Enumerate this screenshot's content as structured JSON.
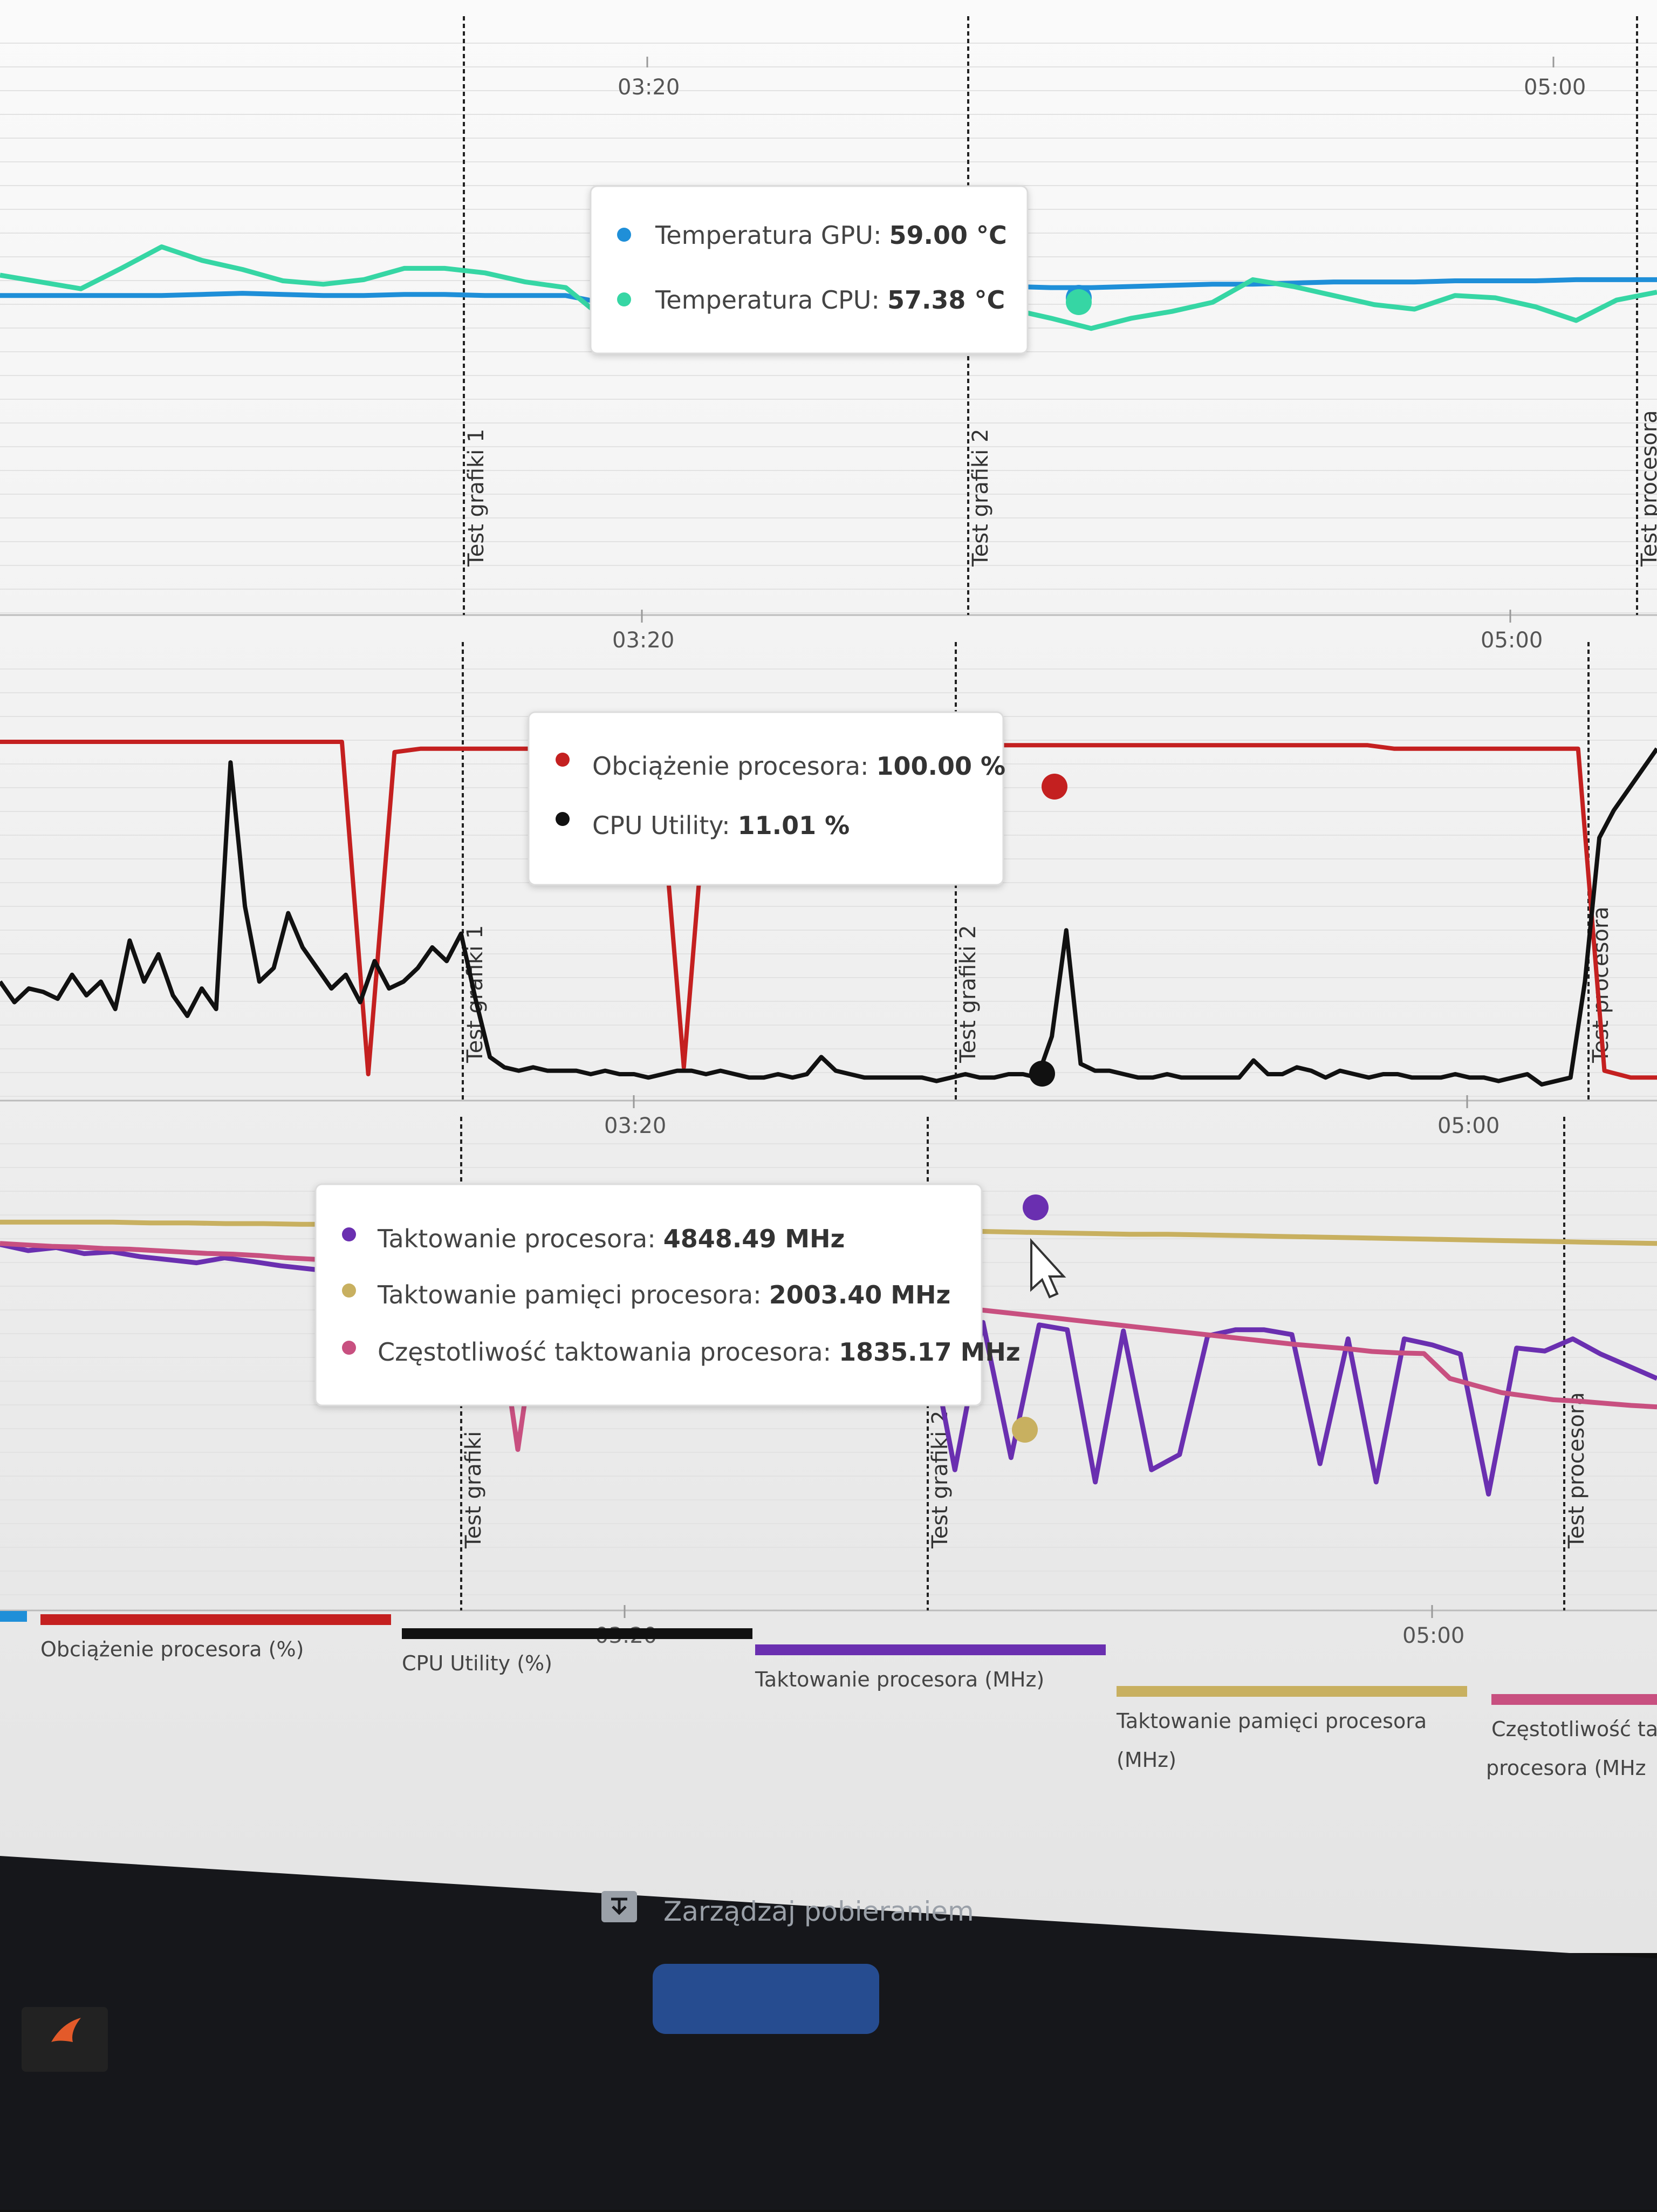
{
  "colors": {
    "gpu_temp": "#1f8fd8",
    "cpu_temp": "#36d6a4",
    "cpu_load": "#c42020",
    "cpu_utility": "#111111",
    "cpu_clock": "#6a2fb0",
    "mem_clock": "#c8b060",
    "cpu_freq": "#c85080",
    "page_bg": "#f3f3f3",
    "taskbar": "#15161a"
  },
  "chart_data": [
    {
      "type": "line",
      "panel": "temperatures",
      "x_ticks": [
        "03:20",
        "05:00"
      ],
      "markers": [
        "Test grafiki 1",
        "Test grafiki 2",
        "Test procesora"
      ],
      "series": [
        {
          "name": "Temperatura GPU",
          "unit": "°C",
          "values": [
            58.2,
            58.2,
            58.2,
            58.2,
            58.2,
            58.3,
            58.4,
            58.3,
            58.2,
            58.2,
            58.3,
            58.3,
            58.2,
            58.2,
            58.2,
            57.5,
            57.0,
            57.4,
            57.8,
            58.0,
            58.0,
            58.0,
            58.1,
            58.1,
            59.0,
            59.0,
            58.9,
            58.9,
            59.0,
            59.1,
            59.2,
            59.2,
            59.3,
            59.4,
            59.4,
            59.4,
            59.5,
            59.5,
            59.5,
            59.6,
            59.6,
            59.6
          ]
        },
        {
          "name": "Temperatura CPU",
          "unit": "°C",
          "values": [
            60.0,
            59.4,
            58.8,
            60.6,
            62.5,
            61.3,
            60.5,
            59.5,
            59.2,
            59.6,
            60.6,
            60.6,
            60.2,
            59.4,
            58.9,
            56.0,
            54.0,
            56.5,
            57.0,
            55.5,
            54.5,
            57.0,
            56.0,
            55.0,
            57.4,
            57.0,
            56.2,
            55.3,
            56.2,
            56.8,
            57.6,
            59.6,
            59.0,
            58.2,
            57.4,
            57.0,
            58.2,
            58.0,
            57.2,
            56.0,
            57.8,
            58.5
          ]
        }
      ]
    },
    {
      "type": "line",
      "panel": "cpu_load",
      "x_ticks": [
        "03:20",
        "05:00"
      ],
      "markers": [
        "Test grafiki 1",
        "Test grafiki 2",
        "Test procesora"
      ],
      "series": [
        {
          "name": "Obciążenie procesora",
          "unit": "%",
          "values": [
            100,
            100,
            100,
            100,
            100,
            100,
            100,
            100,
            100,
            100,
            100,
            100,
            100,
            100,
            3,
            97,
            98,
            98,
            98,
            98,
            98,
            98,
            98,
            98,
            98,
            98,
            5,
            99,
            99,
            99,
            99,
            99,
            99,
            99,
            99,
            99,
            99,
            99,
            99,
            99,
            99,
            99,
            99,
            99,
            99,
            99,
            99,
            99,
            99,
            99,
            99,
            99,
            99,
            98,
            98,
            98,
            98,
            98,
            98,
            98,
            98,
            4,
            2,
            2
          ]
        },
        {
          "name": "CPU Utility",
          "unit": "%",
          "values": [
            30,
            24,
            28,
            27,
            25,
            32,
            26,
            30,
            22,
            42,
            30,
            38,
            26,
            20,
            28,
            22,
            94,
            52,
            30,
            34,
            50,
            40,
            34,
            28,
            32,
            24,
            36,
            28,
            30,
            34,
            40,
            36,
            44,
            25,
            8,
            5,
            4,
            5,
            4,
            4,
            4,
            3,
            4,
            3,
            3,
            2,
            3,
            4,
            4,
            3,
            4,
            3,
            2,
            2,
            3,
            2,
            3,
            8,
            4,
            3,
            2,
            2,
            2,
            2,
            2,
            1,
            2,
            3,
            2,
            2,
            3,
            3,
            2,
            14,
            45,
            6,
            4,
            4,
            3,
            2,
            2,
            3,
            2,
            2,
            2,
            2,
            2,
            7,
            3,
            3,
            5,
            4,
            2,
            4,
            3,
            2,
            3,
            3,
            2,
            2,
            2,
            3,
            2,
            2,
            1,
            2,
            3,
            0,
            1,
            2,
            30,
            72,
            80,
            86,
            92,
            98
          ]
        }
      ]
    },
    {
      "type": "line",
      "panel": "clocks",
      "x_ticks": [
        "03:20",
        "05:00"
      ],
      "markers": [
        "Test grafiki",
        "Test grafiki 2",
        "Test procesora"
      ],
      "series": [
        {
          "name": "Taktowanie procesora",
          "unit": "MHz",
          "values": [
            4970,
            4960,
            4965,
            4955,
            4958,
            4950,
            4945,
            4940,
            4948,
            4942,
            4935,
            4930,
            4925,
            4920,
            4930,
            4915,
            4905,
            4900,
            4895,
            4890,
            4885,
            4880,
            4875,
            4870,
            4865,
            4862,
            4860,
            4858,
            4855,
            4852,
            4850,
            4848,
            4845,
            4840,
            4600,
            4842,
            4620,
            4838,
            4830,
            4580,
            4828,
            4600,
            4625,
            4820,
            4830,
            4830,
            4822,
            4610,
            4815,
            4580,
            4815,
            4805,
            4790,
            4560,
            4800,
            4795,
            4815,
            4790,
            4770,
            4750
          ]
        },
        {
          "name": "Taktowanie pamięci procesora",
          "unit": "MHz",
          "values": [
            2020,
            2020,
            2020,
            2020,
            2019,
            2019,
            2018,
            2018,
            2017,
            2017,
            2016,
            2016,
            2015,
            2015,
            2014,
            2014,
            2013,
            2013,
            2012,
            2012,
            2011,
            2011,
            2010,
            2010,
            2009,
            2008,
            2007,
            2006,
            2005,
            2004,
            2003,
            2003,
            2002,
            2001,
            2000,
            1999,
            1998,
            1997,
            1996,
            1995,
            1994,
            1993,
            1992,
            1991,
            1990
          ]
        },
        {
          "name": "Częstotliwość taktowania procesora",
          "unit": "MHz",
          "values": [
            1990,
            1988,
            1986,
            1985,
            1983,
            1982,
            1980,
            1978,
            1976,
            1975,
            1973,
            1970,
            1968,
            1966,
            1964,
            1962,
            1960,
            1958,
            1955,
            1953,
            1700,
            1950,
            1948,
            1945,
            1943,
            1940,
            1938,
            1936,
            1934,
            1932,
            1930,
            1928,
            1925,
            1920,
            1915,
            1910,
            1905,
            1900,
            1896,
            1892,
            1888,
            1884,
            1880,
            1876,
            1872,
            1868,
            1864,
            1860,
            1856,
            1852,
            1848,
            1845,
            1842,
            1838,
            1836,
            1835,
            1800,
            1790,
            1780,
            1775,
            1770,
            1768,
            1765,
            1762,
            1760
          ]
        }
      ]
    }
  ],
  "tooltips": {
    "temps": [
      {
        "label": "Temperatura GPU:",
        "value": "59.00 °C"
      },
      {
        "label": "Temperatura CPU:",
        "value": "57.38 °C"
      }
    ],
    "load": [
      {
        "label": "Obciążenie procesora:",
        "value": "100.00 %"
      },
      {
        "label": "CPU Utility:",
        "value": "11.01 %"
      }
    ],
    "clocks": [
      {
        "label": "Taktowanie procesora:",
        "value": "4848.49 MHz"
      },
      {
        "label": "Taktowanie pamięci procesora:",
        "value": "2003.40 MHz"
      },
      {
        "label": "Częstotliwość taktowania procesora:",
        "value": "1835.17 MHz"
      }
    ]
  },
  "legend": [
    {
      "line1": "Obciążenie procesora (%)",
      "line2": ""
    },
    {
      "line1": "CPU Utility (%)",
      "line2": ""
    },
    {
      "line1": "Taktowanie procesora (MHz)",
      "line2": ""
    },
    {
      "line1": "Taktowanie pamięci procesora",
      "line2": "(MHz)"
    },
    {
      "line1": "Częstotliwość ta",
      "line2": "procesora (MHz"
    }
  ],
  "downloads": {
    "label": "Zarządzaj pobieraniem",
    "icon": "download-manager-icon"
  }
}
